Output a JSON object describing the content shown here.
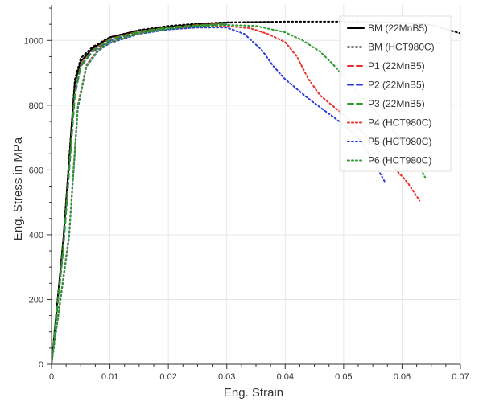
{
  "chart_data": {
    "type": "line",
    "title": "",
    "xlabel": "Eng. Strain",
    "ylabel": "Eng. Stress in MPa",
    "xlim": [
      0,
      0.07
    ],
    "ylim": [
      0,
      1110
    ],
    "x_ticks": [
      0,
      0.01,
      0.02,
      0.03,
      0.04,
      0.05,
      0.06,
      0.07
    ],
    "x_tick_labels": [
      "0",
      "0.01",
      "0.02",
      "0.03",
      "0.04",
      "0.05",
      "0.06",
      "0.07"
    ],
    "y_ticks": [
      0,
      200,
      400,
      600,
      800,
      1000
    ],
    "y_tick_labels": [
      "0",
      "200",
      "400",
      "600",
      "800",
      "1000"
    ],
    "grid": true,
    "legend_position": "top-right",
    "series": [
      {
        "name": "BM  (22MnB5)",
        "color": "#000000",
        "style": "solid",
        "points": [
          [
            0,
            0
          ],
          [
            0.002,
            380
          ],
          [
            0.004,
            870
          ],
          [
            0.005,
            935
          ],
          [
            0.007,
            975
          ],
          [
            0.01,
            1010
          ],
          [
            0.015,
            1030
          ],
          [
            0.02,
            1042
          ],
          [
            0.025,
            1050
          ],
          [
            0.03,
            1055
          ],
          [
            0.031,
            1055
          ]
        ]
      },
      {
        "name": "BM   (HCT980C)",
        "color": "#000000",
        "style": "dotted",
        "points": [
          [
            0,
            0
          ],
          [
            0.002,
            380
          ],
          [
            0.004,
            880
          ],
          [
            0.005,
            945
          ],
          [
            0.007,
            980
          ],
          [
            0.01,
            1010
          ],
          [
            0.015,
            1032
          ],
          [
            0.02,
            1045
          ],
          [
            0.025,
            1052
          ],
          [
            0.03,
            1056
          ],
          [
            0.04,
            1058
          ],
          [
            0.05,
            1058
          ],
          [
            0.06,
            1055
          ],
          [
            0.065,
            1048
          ],
          [
            0.07,
            1022
          ]
        ]
      },
      {
        "name": "P1 (22MnB5)",
        "color": "#e8322c",
        "style": "dashed",
        "points": [
          [
            0,
            0
          ],
          [
            0.002,
            360
          ],
          [
            0.004,
            840
          ],
          [
            0.005,
            925
          ],
          [
            0.007,
            970
          ],
          [
            0.01,
            1005
          ],
          [
            0.015,
            1028
          ],
          [
            0.02,
            1040
          ],
          [
            0.025,
            1048
          ],
          [
            0.03,
            1052
          ]
        ]
      },
      {
        "name": "P2 (22MnB5)",
        "color": "#2b3bd6",
        "style": "dashed",
        "points": [
          [
            0,
            0
          ],
          [
            0.002,
            350
          ],
          [
            0.004,
            830
          ],
          [
            0.005,
            920
          ],
          [
            0.007,
            965
          ],
          [
            0.01,
            1000
          ],
          [
            0.015,
            1025
          ],
          [
            0.02,
            1038
          ],
          [
            0.025,
            1045
          ],
          [
            0.03,
            1050
          ]
        ]
      },
      {
        "name": "P3 (22MnB5)",
        "color": "#2a9a2a",
        "style": "dashed",
        "points": [
          [
            0,
            0
          ],
          [
            0.002,
            355
          ],
          [
            0.004,
            835
          ],
          [
            0.005,
            922
          ],
          [
            0.007,
            968
          ],
          [
            0.01,
            1003
          ],
          [
            0.015,
            1027
          ],
          [
            0.02,
            1040
          ],
          [
            0.025,
            1047
          ],
          [
            0.03,
            1051
          ]
        ]
      },
      {
        "name": "P4 (HCT980C)",
        "color": "#e8322c",
        "style": "dotted",
        "points": [
          [
            0,
            0
          ],
          [
            0.003,
            400
          ],
          [
            0.0045,
            800
          ],
          [
            0.006,
            925
          ],
          [
            0.008,
            972
          ],
          [
            0.01,
            995
          ],
          [
            0.015,
            1022
          ],
          [
            0.02,
            1036
          ],
          [
            0.025,
            1042
          ],
          [
            0.03,
            1044
          ],
          [
            0.034,
            1038
          ],
          [
            0.037,
            1020
          ],
          [
            0.04,
            995
          ],
          [
            0.042,
            950
          ],
          [
            0.044,
            880
          ],
          [
            0.046,
            830
          ],
          [
            0.05,
            770
          ],
          [
            0.053,
            720
          ],
          [
            0.056,
            660
          ],
          [
            0.059,
            600
          ],
          [
            0.061,
            560
          ],
          [
            0.063,
            505
          ]
        ]
      },
      {
        "name": "P5 (HCT980C)",
        "color": "#2b3bd6",
        "style": "dotted",
        "points": [
          [
            0,
            0
          ],
          [
            0.003,
            390
          ],
          [
            0.0045,
            790
          ],
          [
            0.006,
            920
          ],
          [
            0.008,
            968
          ],
          [
            0.01,
            992
          ],
          [
            0.015,
            1020
          ],
          [
            0.02,
            1034
          ],
          [
            0.025,
            1040
          ],
          [
            0.03,
            1040
          ],
          [
            0.033,
            1020
          ],
          [
            0.036,
            970
          ],
          [
            0.038,
            920
          ],
          [
            0.04,
            880
          ],
          [
            0.042,
            850
          ],
          [
            0.044,
            820
          ],
          [
            0.047,
            780
          ],
          [
            0.05,
            740
          ],
          [
            0.053,
            690
          ],
          [
            0.055,
            630
          ],
          [
            0.057,
            565
          ]
        ]
      },
      {
        "name": "P6 (HCT980C)",
        "color": "#2a9a2a",
        "style": "dotted",
        "points": [
          [
            0,
            0
          ],
          [
            0.003,
            395
          ],
          [
            0.0045,
            795
          ],
          [
            0.006,
            922
          ],
          [
            0.008,
            970
          ],
          [
            0.01,
            995
          ],
          [
            0.015,
            1022
          ],
          [
            0.02,
            1036
          ],
          [
            0.025,
            1044
          ],
          [
            0.03,
            1048
          ],
          [
            0.035,
            1045
          ],
          [
            0.04,
            1025
          ],
          [
            0.043,
            1000
          ],
          [
            0.046,
            965
          ],
          [
            0.048,
            930
          ],
          [
            0.05,
            890
          ],
          [
            0.052,
            845
          ],
          [
            0.055,
            790
          ],
          [
            0.058,
            730
          ],
          [
            0.061,
            670
          ],
          [
            0.063,
            610
          ],
          [
            0.064,
            575
          ]
        ]
      }
    ]
  }
}
